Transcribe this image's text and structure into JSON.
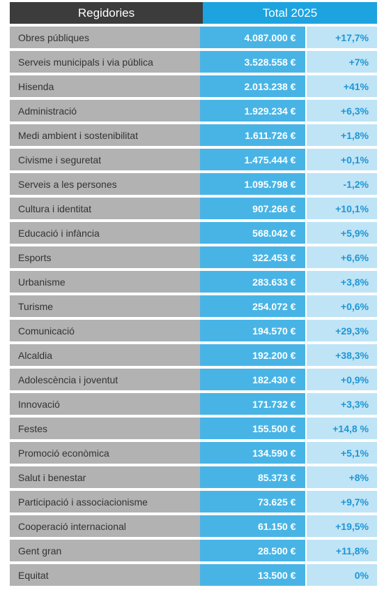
{
  "header": {
    "col1": "Regidories",
    "col2": "Total 2025"
  },
  "rows": [
    {
      "name": "Obres públiques",
      "amount": "4.087.000 €",
      "change": "+17,7%"
    },
    {
      "name": "Serveis municipals i via pública",
      "amount": "3.528.558 €",
      "change": "+7%"
    },
    {
      "name": "Hisenda",
      "amount": "2.013.238 €",
      "change": "+41%"
    },
    {
      "name": "Administració",
      "amount": "1.929.234 €",
      "change": "+6,3%"
    },
    {
      "name": "Medi ambient i sostenibilitat",
      "amount": "1.611.726 €",
      "change": "+1,8%"
    },
    {
      "name": "Civisme i seguretat",
      "amount": "1.475.444 €",
      "change": "+0,1%"
    },
    {
      "name": "Serveis a les persones",
      "amount": "1.095.798 €",
      "change": "-1,2%"
    },
    {
      "name": "Cultura i identitat",
      "amount": "907.266 €",
      "change": "+10,1%"
    },
    {
      "name": "Educació i infància",
      "amount": "568.042 €",
      "change": "+5,9%"
    },
    {
      "name": "Esports",
      "amount": "322.453 €",
      "change": "+6,6%"
    },
    {
      "name": "Urbanisme",
      "amount": "283.633 €",
      "change": "+3,8%"
    },
    {
      "name": "Turisme",
      "amount": "254.072 €",
      "change": "+0,6%"
    },
    {
      "name": "Comunicació",
      "amount": "194.570 €",
      "change": "+29,3%"
    },
    {
      "name": "Alcaldia",
      "amount": "192.200 €",
      "change": "+38,3%"
    },
    {
      "name": "Adolescència i joventut",
      "amount": "182.430 €",
      "change": "+0,9%"
    },
    {
      "name": "Innovació",
      "amount": "171.732 €",
      "change": "+3,3%"
    },
    {
      "name": "Festes",
      "amount": "155.500 €",
      "change": "+14,8 %"
    },
    {
      "name": "Promoció econòmica",
      "amount": "134.590 €",
      "change": "+5,1%"
    },
    {
      "name": "Salut i benestar",
      "amount": "85.373 €",
      "change": "+8%"
    },
    {
      "name": "Participació i associacionisme",
      "amount": "73.625 €",
      "change": "+9,7%"
    },
    {
      "name": "Cooperació internacional",
      "amount": "61.150 €",
      "change": "+19,5%"
    },
    {
      "name": "Gent gran",
      "amount": "28.500 €",
      "change": "+11,8%"
    },
    {
      "name": "Equitat",
      "amount": "13.500 €",
      "change": "0%"
    }
  ]
}
